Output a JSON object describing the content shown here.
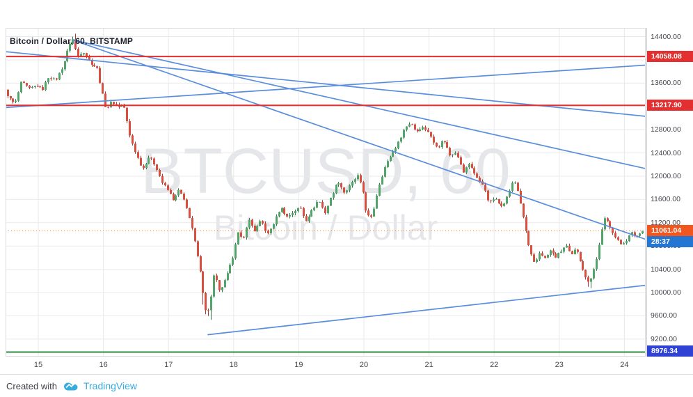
{
  "header": {
    "title": "Bitcoin / Dollar, 60, BITSTAMP"
  },
  "watermark": {
    "line1": "BTCUSD, 60",
    "line2": "Bitcoin / Dollar"
  },
  "footer": {
    "created_with": "Created with",
    "brand": "TradingView",
    "brand_color": "#38abdf"
  },
  "chart_data": {
    "type": "candlestick",
    "symbol": "BTCUSD",
    "exchange": "BITSTAMP",
    "interval_minutes": 60,
    "title": "Bitcoin / Dollar, 60, BITSTAMP",
    "last_price": 11061.04,
    "x_axis": {
      "domain_days": [
        14.498,
        24.327
      ],
      "ticks": [
        {
          "day": 15,
          "label": "15"
        },
        {
          "day": 16,
          "label": "16"
        },
        {
          "day": 17,
          "label": "17"
        },
        {
          "day": 18,
          "label": "18"
        },
        {
          "day": 19,
          "label": "19"
        },
        {
          "day": 20,
          "label": "20"
        },
        {
          "day": 21,
          "label": "21"
        },
        {
          "day": 22,
          "label": "22"
        },
        {
          "day": 23,
          "label": "23"
        },
        {
          "day": 24,
          "label": "24"
        }
      ]
    },
    "y_axis": {
      "domain": [
        8899,
        14550
      ],
      "ticks": [
        {
          "price": 14400,
          "label": "14400.00"
        },
        {
          "price": 14000,
          "label": "14000.00"
        },
        {
          "price": 13600,
          "label": "13600.00"
        },
        {
          "price": 13200,
          "label": "13200.00"
        },
        {
          "price": 12800,
          "label": "12800.00"
        },
        {
          "price": 12400,
          "label": "12400.00"
        },
        {
          "price": 12000,
          "label": "12000.00"
        },
        {
          "price": 11600,
          "label": "11600.00"
        },
        {
          "price": 11200,
          "label": "11200.00"
        },
        {
          "price": 10800,
          "label": "10800.00"
        },
        {
          "price": 10400,
          "label": "10400.00"
        },
        {
          "price": 10000,
          "label": "10000.00"
        },
        {
          "price": 9600,
          "label": "9600.00"
        },
        {
          "price": 9200,
          "label": "9200.00"
        }
      ]
    },
    "colors": {
      "up": "#51a569",
      "up_border": "#35734a",
      "down": "#d94f3f",
      "down_border": "#a83b2e",
      "grid": "#e8e9eb",
      "trend": "#5a8edc",
      "resistance": "#e32f2f",
      "support_green": "#2e8b3c",
      "last_price_line": "#ff7518"
    },
    "horizontal_lines": [
      {
        "price": 14058.08,
        "label": "14058.08",
        "color": "#e32f2f",
        "label_bg": "#e32f2f",
        "stroke_width": 2
      },
      {
        "price": 13217.9,
        "label": "13217.90",
        "color": "#e32f2f",
        "label_bg": "#e32f2f",
        "stroke_width": 2
      },
      {
        "price": 8976.34,
        "label": "8976.34",
        "color": "#2e8b3c",
        "label_bg": "#3042d4",
        "stroke_width": 2
      }
    ],
    "trend_lines": [
      {
        "from": [
          14.5,
          14140
        ],
        "to": [
          24.327,
          13030
        ],
        "color": "#5a8edc"
      },
      {
        "from": [
          14.5,
          13180
        ],
        "to": [
          24.327,
          13910
        ],
        "color": "#5a8edc"
      },
      {
        "from": [
          15.53,
          14340
        ],
        "to": [
          24.327,
          12130
        ],
        "color": "#5a8edc"
      },
      {
        "from": [
          15.53,
          14340
        ],
        "to": [
          24.327,
          10915
        ],
        "color": "#5a8edc"
      },
      {
        "from": [
          17.6,
          9275
        ],
        "to": [
          24.327,
          10125
        ],
        "color": "#5a8edc"
      }
    ],
    "last_price_label": {
      "text": "11061.04",
      "bg": "#f0561e"
    },
    "countdown_label": {
      "text": "28:37",
      "bg": "#2476d2"
    },
    "price_path": [
      [
        14.5,
        13480
      ],
      [
        14.6,
        13300
      ],
      [
        14.66,
        13240
      ],
      [
        14.76,
        13620
      ],
      [
        14.88,
        13500
      ],
      [
        15.0,
        13560
      ],
      [
        15.08,
        13480
      ],
      [
        15.18,
        13720
      ],
      [
        15.28,
        13640
      ],
      [
        15.4,
        13900
      ],
      [
        15.5,
        14280
      ],
      [
        15.55,
        14360
      ],
      [
        15.62,
        14040
      ],
      [
        15.7,
        14160
      ],
      [
        15.82,
        13950
      ],
      [
        15.92,
        13860
      ],
      [
        16.0,
        13420
      ],
      [
        16.06,
        13150
      ],
      [
        16.14,
        13280
      ],
      [
        16.25,
        13200
      ],
      [
        16.33,
        13230
      ],
      [
        16.42,
        12700
      ],
      [
        16.52,
        12380
      ],
      [
        16.62,
        12120
      ],
      [
        16.72,
        12340
      ],
      [
        16.82,
        12180
      ],
      [
        16.92,
        11890
      ],
      [
        17.02,
        11740
      ],
      [
        17.1,
        11580
      ],
      [
        17.18,
        11780
      ],
      [
        17.27,
        11540
      ],
      [
        17.36,
        11220
      ],
      [
        17.45,
        10700
      ],
      [
        17.52,
        10250
      ],
      [
        17.58,
        9720
      ],
      [
        17.64,
        9680
      ],
      [
        17.72,
        10340
      ],
      [
        17.8,
        10010
      ],
      [
        17.9,
        10240
      ],
      [
        18.0,
        10580
      ],
      [
        18.08,
        11040
      ],
      [
        18.16,
        10880
      ],
      [
        18.24,
        11270
      ],
      [
        18.34,
        11060
      ],
      [
        18.44,
        11240
      ],
      [
        18.54,
        10990
      ],
      [
        18.64,
        11210
      ],
      [
        18.74,
        11470
      ],
      [
        18.84,
        11300
      ],
      [
        18.94,
        11390
      ],
      [
        19.04,
        11470
      ],
      [
        19.12,
        11230
      ],
      [
        19.22,
        11410
      ],
      [
        19.32,
        11600
      ],
      [
        19.42,
        11370
      ],
      [
        19.52,
        11660
      ],
      [
        19.62,
        11920
      ],
      [
        19.72,
        11710
      ],
      [
        19.82,
        11860
      ],
      [
        19.92,
        12010
      ],
      [
        20.0,
        11760
      ],
      [
        20.06,
        11330
      ],
      [
        20.14,
        11280
      ],
      [
        20.24,
        11820
      ],
      [
        20.34,
        12160
      ],
      [
        20.44,
        12380
      ],
      [
        20.54,
        12560
      ],
      [
        20.64,
        12820
      ],
      [
        20.74,
        12930
      ],
      [
        20.82,
        12760
      ],
      [
        20.9,
        12850
      ],
      [
        21.0,
        12780
      ],
      [
        21.08,
        12590
      ],
      [
        21.16,
        12500
      ],
      [
        21.24,
        12640
      ],
      [
        21.34,
        12360
      ],
      [
        21.44,
        12430
      ],
      [
        21.54,
        12060
      ],
      [
        21.64,
        12230
      ],
      [
        21.74,
        11980
      ],
      [
        21.84,
        11870
      ],
      [
        21.94,
        11530
      ],
      [
        22.04,
        11640
      ],
      [
        22.14,
        11460
      ],
      [
        22.24,
        11700
      ],
      [
        22.32,
        11970
      ],
      [
        22.4,
        11650
      ],
      [
        22.48,
        11200
      ],
      [
        22.56,
        10720
      ],
      [
        22.64,
        10480
      ],
      [
        22.72,
        10700
      ],
      [
        22.8,
        10580
      ],
      [
        22.88,
        10720
      ],
      [
        22.96,
        10610
      ],
      [
        23.04,
        10700
      ],
      [
        23.12,
        10820
      ],
      [
        23.2,
        10620
      ],
      [
        23.28,
        10770
      ],
      [
        23.36,
        10480
      ],
      [
        23.44,
        10180
      ],
      [
        23.5,
        10240
      ],
      [
        23.58,
        10520
      ],
      [
        23.66,
        11020
      ],
      [
        23.72,
        11290
      ],
      [
        23.8,
        11130
      ],
      [
        23.88,
        10950
      ],
      [
        23.96,
        10830
      ],
      [
        24.04,
        10890
      ],
      [
        24.12,
        11030
      ],
      [
        24.2,
        10960
      ],
      [
        24.3,
        11061
      ]
    ]
  }
}
